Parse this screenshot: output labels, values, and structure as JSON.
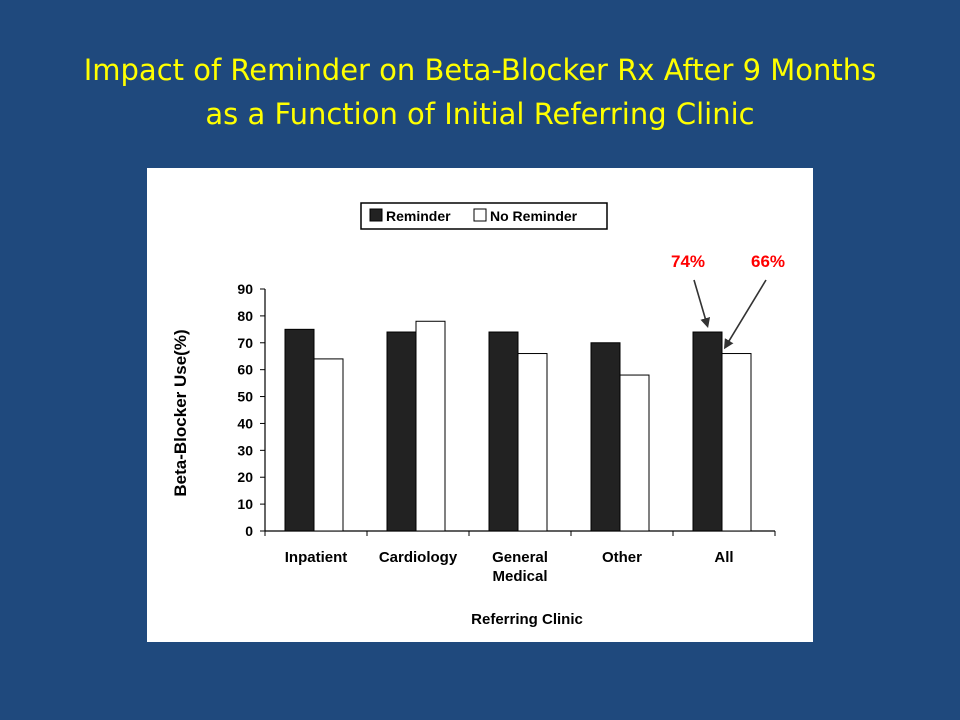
{
  "slide": {
    "title_line1": "Impact of Reminder on Beta-Blocker Rx After 9 Months",
    "title_line2": "as a Function of Initial Referring Clinic"
  },
  "colors": {
    "background": "#1f497d",
    "title": "#ffff00",
    "reminder_bar": "#222222",
    "no_reminder_bar": "#ffffff",
    "annotation": "#ff0000"
  },
  "chart_data": {
    "type": "bar",
    "categories": [
      "Inpatient",
      "Cardiology",
      "General Medical",
      "Other",
      "All"
    ],
    "category_labels": [
      [
        "Inpatient"
      ],
      [
        "Cardiology"
      ],
      [
        "General",
        "Medical"
      ],
      [
        "Other"
      ],
      [
        "All"
      ]
    ],
    "series": [
      {
        "name": "Reminder",
        "values": [
          75,
          74,
          74,
          70,
          74
        ]
      },
      {
        "name": "No Reminder",
        "values": [
          64,
          78,
          66,
          58,
          66
        ]
      }
    ],
    "xlabel": "Referring Clinic",
    "ylabel": "Beta-Blocker Use(%)",
    "ylim": [
      0,
      90
    ],
    "yticks": [
      "0",
      "10",
      "20",
      "30",
      "40",
      "50",
      "60",
      "70",
      "80",
      "90"
    ],
    "legend": {
      "position": "top",
      "entries": [
        "Reminder",
        "No Reminder"
      ]
    },
    "grid": false,
    "annotations": [
      {
        "text": "74%",
        "category": "All",
        "series": "Reminder"
      },
      {
        "text": "66%",
        "category": "All",
        "series": "No Reminder"
      }
    ]
  }
}
